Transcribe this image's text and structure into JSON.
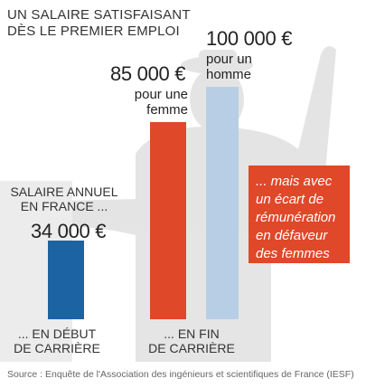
{
  "title_lines": [
    "UN SALAIRE SATISFAISANT",
    "DÈS LE PREMIER EMPLOI"
  ],
  "colors": {
    "debut": "#1c63a3",
    "femme": "#e0482a",
    "homme": "#b8cee5",
    "callout": "#e0482a"
  },
  "chart_data": {
    "type": "bar",
    "series": [
      {
        "name": "",
        "category": "... EN DÉBUT DE CARRIÈRE",
        "value": 34000
      },
      {
        "name": "pour une femme",
        "category": "... EN FIN DE CARRIÈRE",
        "value": 85000
      },
      {
        "name": "pour un homme",
        "category": "... EN FIN DE CARRIÈRE",
        "value": 100000
      }
    ],
    "ylim": [
      0,
      100000
    ]
  },
  "annotations": {
    "intro_lines": [
      "SALAIRE ANNUEL",
      "EN FRANCE ..."
    ],
    "value_debut": "34 000 €",
    "value_femme": "85 000 €",
    "value_femme_sub_lines": [
      "pour une",
      "femme"
    ],
    "value_homme": "100 000 €",
    "value_homme_sub_lines": [
      "pour un",
      "homme"
    ],
    "label_debut_lines": [
      "... EN DÉBUT",
      "DE CARRIÈRE"
    ],
    "label_fin_lines": [
      "... EN FIN",
      "DE CARRIÈRE"
    ],
    "callout_lines": [
      "... mais avec",
      "un écart de",
      "rémunération",
      "en défaveur",
      "des femmes"
    ]
  },
  "source": "Source : Enquête de l'Association des ingénieurs et scientifiques de France (IESF)"
}
